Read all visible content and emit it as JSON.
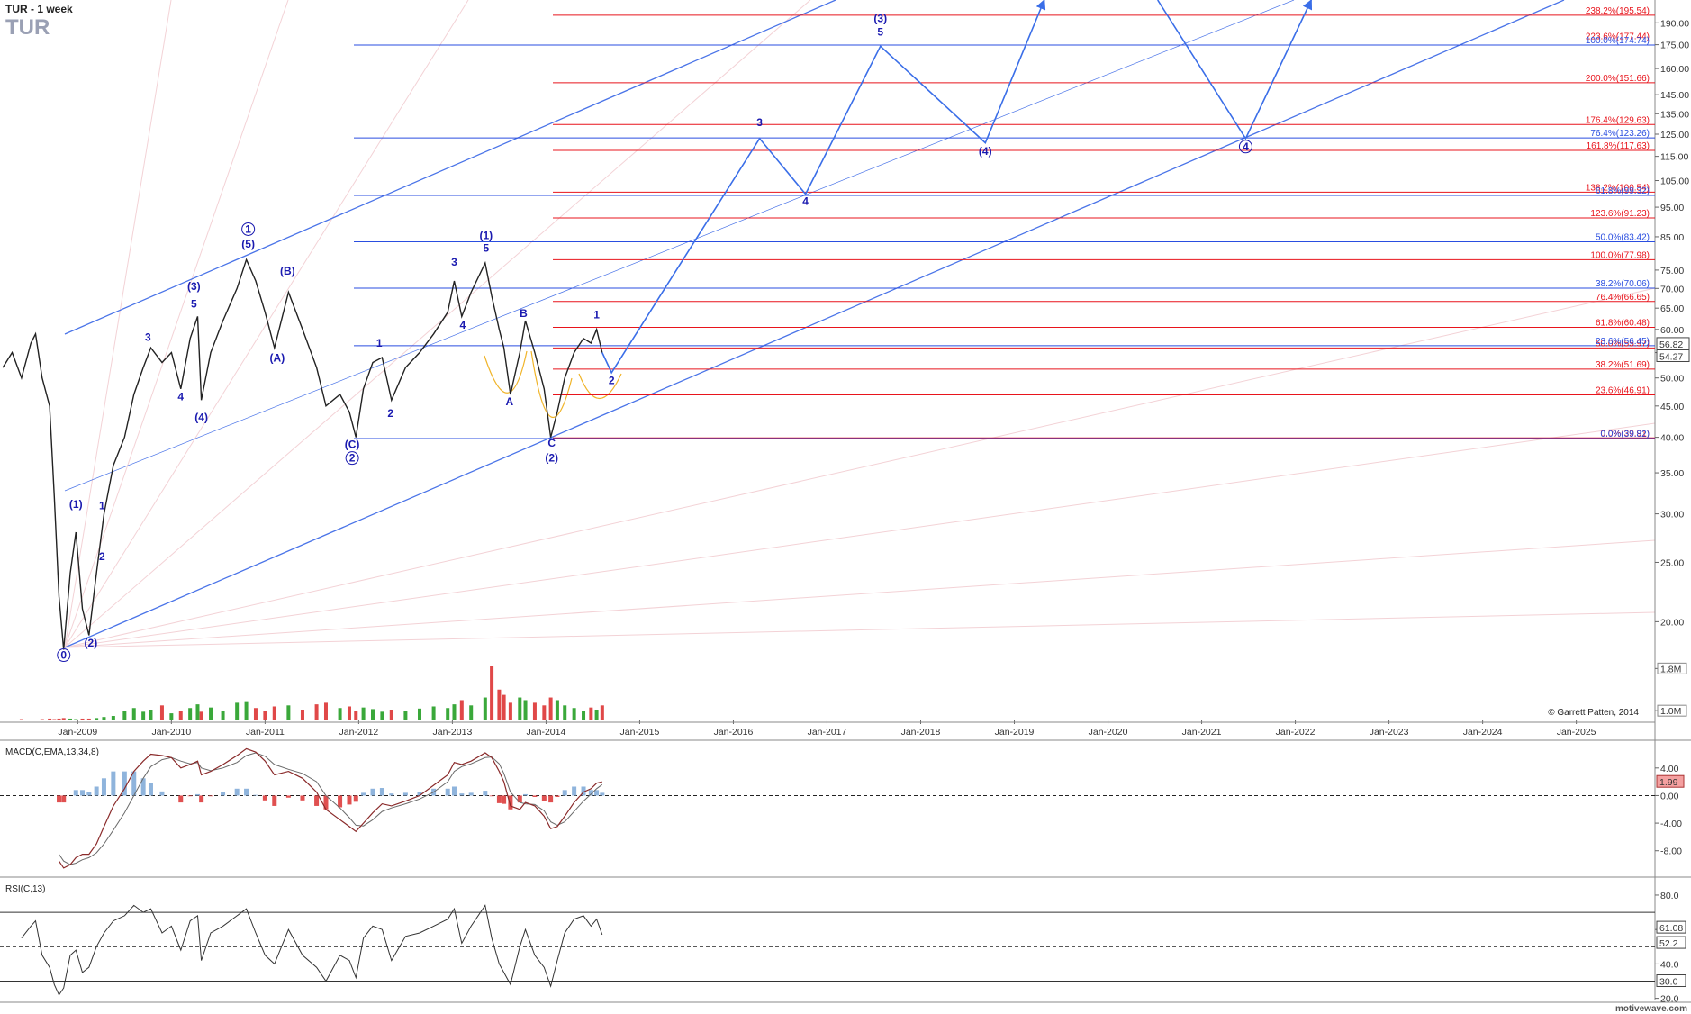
{
  "chart_data": [
    {
      "type": "line",
      "title": "TUR - 1 week",
      "subtitle": "TUR",
      "copyright": "© Garrett Patten, 2014",
      "footer": "motivewave.com",
      "log_scale": true,
      "xlim": [
        2008.17,
        2025.84
      ],
      "ylim": [
        13.8,
        207
      ],
      "price_color": "#222222",
      "xticks": [
        {
          "value": 2009,
          "label": "Jan-2009"
        },
        {
          "value": 2010,
          "label": "Jan-2010"
        },
        {
          "value": 2011,
          "label": "Jan-2011"
        },
        {
          "value": 2012,
          "label": "Jan-2012"
        },
        {
          "value": 2013,
          "label": "Jan-2013"
        },
        {
          "value": 2014,
          "label": "Jan-2014"
        },
        {
          "value": 2015,
          "label": "Jan-2015"
        },
        {
          "value": 2016,
          "label": "Jan-2016"
        },
        {
          "value": 2017,
          "label": "Jan-2017"
        },
        {
          "value": 2018,
          "label": "Jan-2018"
        },
        {
          "value": 2019,
          "label": "Jan-2019"
        },
        {
          "value": 2020,
          "label": "Jan-2020"
        },
        {
          "value": 2021,
          "label": "Jan-2021"
        },
        {
          "value": 2022,
          "label": "Jan-2022"
        },
        {
          "value": 2023,
          "label": "Jan-2023"
        },
        {
          "value": 2024,
          "label": "Jan-2024"
        },
        {
          "value": 2025,
          "label": "Jan-2025"
        }
      ],
      "yticks": [
        {
          "value": 20,
          "label": "20.00"
        },
        {
          "value": 25,
          "label": "25.00"
        },
        {
          "value": 30,
          "label": "30.00"
        },
        {
          "value": 35,
          "label": "35.00"
        },
        {
          "value": 40,
          "label": "40.00"
        },
        {
          "value": 45,
          "label": "45.00"
        },
        {
          "value": 50,
          "label": "50.00"
        },
        {
          "value": 55,
          "label": "55.00"
        },
        {
          "value": 60,
          "label": "60.00"
        },
        {
          "value": 65,
          "label": "65.00"
        },
        {
          "value": 70,
          "label": "70.00"
        },
        {
          "value": 75,
          "label": "75.00"
        },
        {
          "value": 85,
          "label": "85.00"
        },
        {
          "value": 95,
          "label": "95.00"
        },
        {
          "value": 105,
          "label": "105.00"
        },
        {
          "value": 115,
          "label": "115.00"
        },
        {
          "value": 125,
          "label": "125.00"
        },
        {
          "value": 135,
          "label": "135.00"
        },
        {
          "value": 145,
          "label": "145.00"
        },
        {
          "value": 160,
          "label": "160.00"
        },
        {
          "value": 175,
          "label": "175.00"
        },
        {
          "value": 190,
          "label": "190.00"
        }
      ],
      "x": [
        2008.2,
        2008.3,
        2008.4,
        2008.5,
        2008.55,
        2008.62,
        2008.7,
        2008.75,
        2008.8,
        2008.85,
        2008.92,
        2008.98,
        2009.05,
        2009.12,
        2009.2,
        2009.28,
        2009.38,
        2009.5,
        2009.6,
        2009.7,
        2009.78,
        2009.9,
        2010.0,
        2010.1,
        2010.2,
        2010.28,
        2010.32,
        2010.42,
        2010.55,
        2010.7,
        2010.8,
        2010.9,
        2011.0,
        2011.1,
        2011.25,
        2011.4,
        2011.55,
        2011.65,
        2011.8,
        2011.9,
        2011.97,
        2012.05,
        2012.15,
        2012.25,
        2012.35,
        2012.5,
        2012.65,
        2012.8,
        2012.95,
        2013.02,
        2013.1,
        2013.2,
        2013.35,
        2013.42,
        2013.5,
        2013.55,
        2013.62,
        2013.72,
        2013.78,
        2013.88,
        2013.98,
        2014.05,
        2014.12,
        2014.2,
        2014.3,
        2014.4,
        2014.48,
        2014.54,
        2014.6
      ],
      "values": [
        52,
        55,
        50,
        57,
        59,
        50,
        45,
        32,
        22,
        18,
        24,
        28,
        21,
        19,
        24,
        30,
        36,
        40,
        47,
        52,
        56,
        53,
        55,
        48,
        58,
        63,
        46,
        55,
        62,
        70,
        78,
        72,
        64,
        56,
        69,
        60,
        52,
        45,
        47,
        44,
        40,
        48,
        53,
        54,
        46,
        52,
        55,
        59,
        64,
        72,
        63,
        69,
        77,
        68,
        60,
        56,
        47,
        55,
        62,
        55,
        48,
        40,
        44,
        50,
        55,
        58,
        57,
        60,
        55
      ],
      "volume": [
        830000,
        830000,
        840000,
        830000,
        830000,
        840000,
        850000,
        840000,
        850000,
        860000,
        850000,
        840000,
        850000,
        850000,
        860000,
        880000,
        900000,
        1000000,
        1050000,
        980000,
        1020000,
        1100000,
        950000,
        1000000,
        1050000,
        1120000,
        980000,
        1060000,
        1000000,
        1150000,
        1180000,
        1050000,
        1000000,
        1080000,
        1100000,
        1020000,
        1120000,
        1150000,
        1050000,
        1080000,
        1000000,
        1060000,
        1030000,
        980000,
        1020000,
        1000000,
        1040000,
        1080000,
        1050000,
        1120000,
        1200000,
        1100000,
        1250000,
        1840000,
        1400000,
        1300000,
        1150000,
        1250000,
        1200000,
        1150000,
        1100000,
        1250000,
        1200000,
        1100000,
        1050000,
        1000000,
        1060000,
        1020000,
        1100000
      ],
      "volume_lim": [
        815000,
        1840000
      ],
      "volume_ticks": [
        {
          "value": 1800000,
          "label": "1.8M"
        },
        {
          "value": 1000000,
          "label": "1.0M"
        }
      ],
      "volume_up_color": "#3aa83a",
      "volume_down_color": "#e04848",
      "last_prices": [
        56.82,
        54.27
      ],
      "extension_color": "#e8141c",
      "retracement_color": "#2a4ee0",
      "extension_levels": [
        {
          "value": 195.54,
          "label": "238.2%(195.54)"
        },
        {
          "value": 177.44,
          "label": "223.6%(177.44)"
        },
        {
          "value": 151.66,
          "label": "200.0%(151.66)"
        },
        {
          "value": 129.63,
          "label": "176.4%(129.63)"
        },
        {
          "value": 117.63,
          "label": "161.8%(117.63)"
        },
        {
          "value": 100.54,
          "label": "138.2%(100.54)"
        },
        {
          "value": 91.23,
          "label": "123.6%(91.23)"
        },
        {
          "value": 77.98,
          "label": "100.0%(77.98)"
        },
        {
          "value": 66.65,
          "label": "76.4%(66.65)"
        },
        {
          "value": 60.48,
          "label": "61.8%(60.48)"
        },
        {
          "value": 55.97,
          "label": "50.0%(55.97)"
        },
        {
          "value": 51.69,
          "label": "38.2%(51.69)"
        },
        {
          "value": 46.91,
          "label": "23.6%(46.91)"
        },
        {
          "value": 39.91,
          "label": "0.0%(39.91)"
        }
      ],
      "retracement_levels": [
        {
          "value": 174.74,
          "label": "100.0%(174.74)"
        },
        {
          "value": 123.26,
          "label": "76.4%(123.26)"
        },
        {
          "value": 99.32,
          "label": "61.8%(99.32)"
        },
        {
          "value": 83.42,
          "label": "50.0%(83.42)"
        },
        {
          "value": 70.06,
          "label": "38.2%(70.06)"
        },
        {
          "value": 56.45,
          "label": "23.6%(56.45)"
        },
        {
          "value": 39.82,
          "label": "0.0%(39.82)"
        }
      ],
      "projection": {
        "color": "#3a6ee8",
        "x": [
          2014.6,
          2014.7,
          2016.28,
          2016.77,
          2017.57,
          2018.69,
          2019.32,
          null,
          2020.53,
          2021.47,
          2022.17
        ],
        "values": [
          55,
          51,
          123,
          99.8,
          174,
          121,
          207,
          null,
          207,
          123,
          207
        ]
      },
      "wave_labels": [
        {
          "text": "(1)",
          "x": 2008.98,
          "y": 30.7
        },
        {
          "text": "1",
          "x": 2009.26,
          "y": 30.5
        },
        {
          "text": "2",
          "x": 2009.26,
          "y": 25.2
        },
        {
          "text": "(2)",
          "x": 2009.14,
          "y": 18.2
        },
        {
          "text": "0",
          "x": 2008.85,
          "y": 17.4,
          "circled": true
        },
        {
          "text": "3",
          "x": 2009.75,
          "y": 57.5
        },
        {
          "text": "4",
          "x": 2010.1,
          "y": 46
        },
        {
          "text": "(3)",
          "x": 2010.24,
          "y": 69.6
        },
        {
          "text": "5",
          "x": 2010.24,
          "y": 65.1
        },
        {
          "text": "(4)",
          "x": 2010.32,
          "y": 42.5
        },
        {
          "text": "1",
          "x": 2010.82,
          "y": 86.3,
          "circled": true
        },
        {
          "text": "(5)",
          "x": 2010.82,
          "y": 81.6
        },
        {
          "text": "(B)",
          "x": 2011.24,
          "y": 73.7
        },
        {
          "text": "(A)",
          "x": 2011.13,
          "y": 53.2
        },
        {
          "text": "1",
          "x": 2012.22,
          "y": 56.2
        },
        {
          "text": "2",
          "x": 2012.34,
          "y": 43.2
        },
        {
          "text": "(C)",
          "x": 2011.93,
          "y": 38.4
        },
        {
          "text": "2",
          "x": 2011.93,
          "y": 36.5,
          "circled": true
        },
        {
          "text": "(1)",
          "x": 2013.36,
          "y": 84.2
        },
        {
          "text": "5",
          "x": 2013.36,
          "y": 80.3
        },
        {
          "text": "3",
          "x": 2013.02,
          "y": 76.3
        },
        {
          "text": "4",
          "x": 2013.11,
          "y": 60.2
        },
        {
          "text": "B",
          "x": 2013.76,
          "y": 62.9
        },
        {
          "text": "A",
          "x": 2013.61,
          "y": 45.1
        },
        {
          "text": "C",
          "x": 2014.06,
          "y": 38.6
        },
        {
          "text": "(2)",
          "x": 2014.06,
          "y": 36.5
        },
        {
          "text": "1",
          "x": 2014.54,
          "y": 62.6
        },
        {
          "text": "2",
          "x": 2014.7,
          "y": 48.9
        },
        {
          "text": "3",
          "x": 2016.28,
          "y": 128.8
        },
        {
          "text": "4",
          "x": 2016.77,
          "y": 95.8
        },
        {
          "text": "(3)",
          "x": 2017.57,
          "y": 190.5
        },
        {
          "text": "5",
          "x": 2017.57,
          "y": 181
        },
        {
          "text": "(4)",
          "x": 2018.69,
          "y": 115.7
        },
        {
          "text": "4",
          "x": 2021.47,
          "y": 117.7,
          "circled": true
        }
      ]
    },
    {
      "type": "macd",
      "title": "MACD(C,EMA,13,34,8)",
      "ylim": [
        -11.56,
        7.5
      ],
      "yticks": [
        {
          "value": 4,
          "label": "4.00"
        },
        {
          "value": 0,
          "label": "0.00"
        },
        {
          "value": -4,
          "label": "-4.00"
        },
        {
          "value": -8,
          "label": "-8.00"
        }
      ],
      "macd": [
        null,
        null,
        null,
        null,
        null,
        null,
        null,
        null,
        -9.5,
        -10.5,
        -10,
        -9,
        -8.5,
        -8.5,
        -7,
        -4.5,
        -1.5,
        1,
        3.5,
        5,
        6,
        5.8,
        5.5,
        4,
        4.5,
        5,
        3,
        3.5,
        4.5,
        5.8,
        6.8,
        6.3,
        5,
        3,
        3.5,
        2.5,
        0.5,
        -2,
        -3.5,
        -4.5,
        -5.2,
        -4,
        -2.5,
        -1.2,
        -1.5,
        -0.8,
        0,
        1.5,
        3,
        4.8,
        4.5,
        5,
        6.2,
        5.5,
        3.5,
        2,
        -1.5,
        -2,
        -1,
        -1.5,
        -3,
        -4.8,
        -4.5,
        -3,
        -1,
        0.5,
        1,
        1.8,
        1.99
      ],
      "signal": [
        null,
        null,
        null,
        null,
        null,
        null,
        null,
        null,
        -8.5,
        -9.5,
        -10,
        -9.8,
        -9.3,
        -9,
        -8.3,
        -7,
        -5,
        -2.5,
        0,
        2.5,
        4.2,
        5.2,
        5.5,
        5,
        4.6,
        4.8,
        4,
        3.6,
        4,
        4.8,
        5.8,
        6.2,
        5.7,
        4.5,
        3.8,
        3.2,
        2,
        0,
        -1.8,
        -3.2,
        -4.3,
        -4.4,
        -3.5,
        -2.3,
        -1.8,
        -1.2,
        -0.5,
        0.5,
        2,
        3.5,
        4.2,
        4.6,
        5.5,
        5.6,
        4.6,
        3.2,
        0.5,
        -1,
        -1.2,
        -1.3,
        -2.2,
        -3.8,
        -4.3,
        -3.8,
        -2.3,
        -0.8,
        0.2,
        1,
        1.6
      ],
      "histogram": [
        null,
        null,
        null,
        null,
        null,
        null,
        null,
        null,
        -1,
        -1,
        0,
        0.8,
        0.8,
        0.5,
        1.3,
        2.5,
        3.5,
        3.5,
        3.5,
        2.5,
        1.8,
        0.6,
        0,
        -1,
        -0.1,
        0.2,
        -1,
        -0.1,
        0.5,
        1,
        1,
        0.1,
        -0.7,
        -1.5,
        -0.3,
        -0.7,
        -1.5,
        -2,
        -1.7,
        -1.3,
        -0.9,
        0.4,
        1,
        1.1,
        0.3,
        0.4,
        0.5,
        1,
        1,
        1.3,
        0.3,
        0.4,
        0.7,
        -0.1,
        -1.1,
        -1.2,
        -2,
        -1,
        0.2,
        -0.2,
        -0.8,
        -1,
        -0.2,
        0.8,
        1.3,
        1.3,
        0.8,
        0.8,
        0.4
      ],
      "macd_color": "#8a2a2a",
      "signal_color": "#6a6a6a",
      "hist_up_color": "#8fb4dc",
      "hist_down_color": "#e05050",
      "last_value": 1.99
    },
    {
      "type": "rsi",
      "title": "RSI(C,13)",
      "ylim": [
        18.75,
        89.4
      ],
      "yticks": [
        {
          "value": 80,
          "label": "80.0"
        },
        {
          "value": 60,
          "label": "60.0"
        },
        {
          "value": 40,
          "label": "40.0"
        },
        {
          "value": 20,
          "label": "20.0"
        }
      ],
      "values": [
        null,
        null,
        55,
        62,
        65,
        45,
        38,
        28,
        22,
        26,
        45,
        48,
        35,
        38,
        50,
        58,
        65,
        68,
        74,
        70,
        72,
        58,
        62,
        48,
        65,
        68,
        42,
        58,
        62,
        68,
        72,
        58,
        45,
        40,
        60,
        45,
        38,
        30,
        45,
        42,
        32,
        55,
        62,
        60,
        42,
        56,
        58,
        62,
        66,
        72,
        52,
        62,
        74,
        55,
        40,
        35,
        28,
        50,
        60,
        45,
        38,
        27,
        42,
        58,
        66,
        68,
        62,
        66,
        57
      ],
      "bands": [
        70,
        30
      ],
      "midline": 50,
      "color": "#333333",
      "highlight_labels": [
        {
          "value": 61.08,
          "label": "61.08"
        },
        {
          "value": 52.2,
          "label": "52.2"
        },
        {
          "value": 30,
          "label": "30.0"
        }
      ]
    }
  ]
}
